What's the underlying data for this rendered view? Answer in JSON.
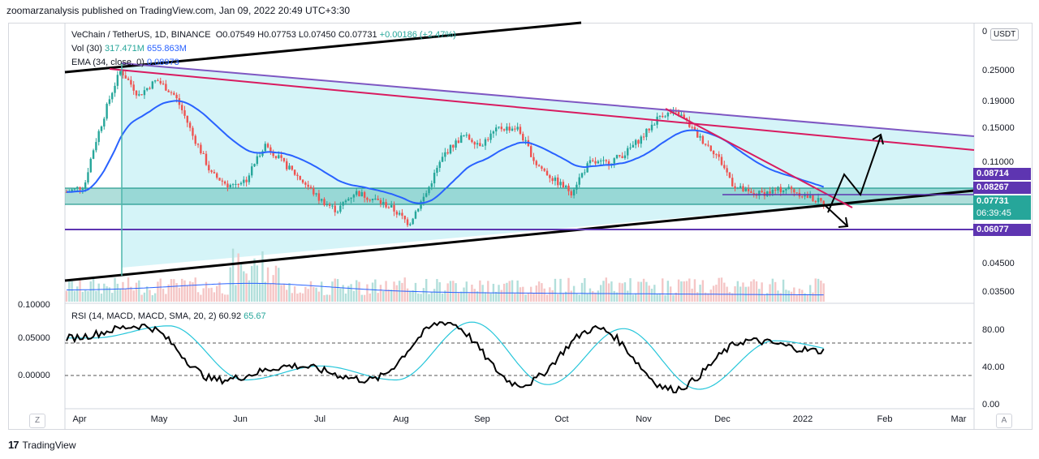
{
  "header": {
    "text": "zoomarzanalysis published on TradingView.com, Jan 09, 2022 20:49 UTC+3:30"
  },
  "legend": {
    "symbol": "VeChain / TetherUS, 1D, BINANCE",
    "o": "O0.07549",
    "h": "H0.07753",
    "l": "L0.07450",
    "c": "C0.07731",
    "change": "+0.00186 (+2.47%)",
    "vol_label": "Vol (30)",
    "vol_a": "317.471M",
    "vol_b": "655.863M",
    "ema_label": "EMA (34, close, 0)",
    "ema_val": "0.08973"
  },
  "rsi_legend": {
    "label": "RSI (14, MACD, MACD, SMA, 20, 2)",
    "v1": "60.92",
    "v2": "65.67"
  },
  "currency": "USDT",
  "price_axis": {
    "ticks": [
      "0.25000",
      "0.19000",
      "0.15000",
      "0.11000",
      "0.04500",
      "0.03500"
    ],
    "top_stub": "0"
  },
  "rsi_axis": {
    "ticks": [
      "80.00",
      "40.00",
      "0.00"
    ]
  },
  "left_axis": {
    "ticks": [
      "0.10000",
      "0.05000",
      "0.00000"
    ]
  },
  "time_axis": {
    "ticks": [
      "Apr",
      "May",
      "Jun",
      "Jul",
      "Aug",
      "Sep",
      "Oct",
      "Nov",
      "Dec",
      "2022",
      "Feb",
      "Mar"
    ]
  },
  "price_tags": {
    "t1": "0.08714",
    "t2": "0.08267",
    "t3": "0.07731",
    "t3_time": "06:39:45",
    "t4": "0.06077"
  },
  "buttons": {
    "z": "Z",
    "a": "A"
  },
  "footer": {
    "logo": "17",
    "brand": "TradingView"
  },
  "colors": {
    "bull": "#26a69a",
    "bear": "#ef5350",
    "ema": "#2962ff",
    "pink": "#d81b60",
    "purple": "#5e35b1",
    "rsi": "#000000",
    "rsi_ma": "#26c6da"
  },
  "chart_data": {
    "type": "candlestick",
    "title": "VeChain / TetherUS, 1D, BINANCE",
    "x": [
      "Apr",
      "May",
      "Jun",
      "Jul",
      "Aug",
      "Sep",
      "Oct",
      "Nov",
      "Dec",
      "2022",
      "Feb",
      "Mar"
    ],
    "approx_close": [
      0.085,
      0.23,
      0.1,
      0.072,
      0.1,
      0.15,
      0.09,
      0.17,
      0.083,
      0.082
    ],
    "levels": [
      0.08714,
      0.08267,
      0.07731,
      0.06077
    ],
    "last": {
      "o": 0.07549,
      "h": 0.07753,
      "l": 0.0745,
      "c": 0.07731
    },
    "rsi_approx": [
      75,
      88,
      30,
      45,
      30,
      92,
      25,
      85,
      20,
      72,
      60.92
    ]
  }
}
